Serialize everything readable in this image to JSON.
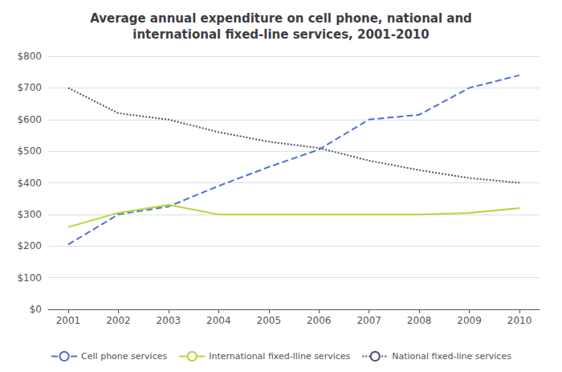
{
  "chart_data": {
    "type": "line",
    "title": "Average annual expenditure on cell phone, national and\ninternational fixed-line services, 2001-2010",
    "x": [
      2001,
      2002,
      2003,
      2004,
      2005,
      2006,
      2007,
      2008,
      2009,
      2010
    ],
    "xlim": [
      2000.6,
      2010.4
    ],
    "xticks": [
      2001,
      2002,
      2003,
      2004,
      2005,
      2006,
      2007,
      2008,
      2009,
      2010
    ],
    "ylim": [
      0,
      800
    ],
    "yticks": [
      {
        "value": 0,
        "label": "$0"
      },
      {
        "value": 100,
        "label": "$100"
      },
      {
        "value": 200,
        "label": "$200"
      },
      {
        "value": 300,
        "label": "$300"
      },
      {
        "value": 400,
        "label": "$400"
      },
      {
        "value": 500,
        "label": "$500"
      },
      {
        "value": 600,
        "label": "$600"
      },
      {
        "value": 700,
        "label": "$700"
      },
      {
        "value": 800,
        "label": "$800"
      }
    ],
    "grid": true,
    "legend": "bottom",
    "series": [
      {
        "name": "Cell phone services",
        "line_style": "dashed",
        "values": [
          205,
          300,
          325,
          390,
          450,
          505,
          600,
          615,
          700,
          740
        ]
      },
      {
        "name": "International fixed-lline services",
        "line_style": "solid",
        "values": [
          260,
          305,
          330,
          300,
          300,
          300,
          300,
          300,
          305,
          320
        ]
      },
      {
        "name": "National fixed-line services",
        "line_style": "dotted",
        "values": [
          700,
          620,
          600,
          560,
          530,
          510,
          470,
          440,
          415,
          400
        ]
      }
    ]
  }
}
